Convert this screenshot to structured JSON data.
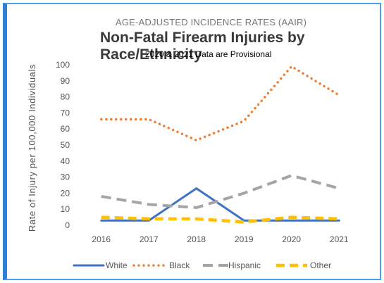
{
  "header": {
    "pre_title": "AGE-ADJUSTED INCIDENCE RATES (AAIR)",
    "title": "Non-Fatal Firearm Injuries by Race/Ethnicity",
    "subtitle": "2020 & 2021 Data are Provisional"
  },
  "chart_data": {
    "type": "line",
    "title": "Non-Fatal Firearm Injuries by Race/Ethnicity",
    "subtitle": "2020 & 2021 Data are Provisional",
    "xlabel": "",
    "ylabel": "Rate of Injury per 100,000 Individuals",
    "categories": [
      "2016",
      "2017",
      "2018",
      "2019",
      "2020",
      "2021"
    ],
    "ylim": [
      0,
      100
    ],
    "yticks": [
      0,
      10,
      20,
      30,
      40,
      50,
      60,
      70,
      80,
      90,
      100
    ],
    "grid": false,
    "legend_position": "bottom",
    "series": [
      {
        "name": "White",
        "values": [
          3,
          3,
          23,
          3,
          3,
          3
        ],
        "color": "#3f72c4",
        "style": "solid"
      },
      {
        "name": "Black",
        "values": [
          66,
          66,
          53,
          65,
          99,
          81
        ],
        "color": "#ed7d31",
        "style": "dotted"
      },
      {
        "name": "Hispanic",
        "values": [
          18,
          13,
          11,
          20,
          31,
          23
        ],
        "color": "#a5a5a5",
        "style": "dashed"
      },
      {
        "name": "Other",
        "values": [
          5,
          4,
          4,
          2,
          5,
          4
        ],
        "color": "#ffc000",
        "style": "dashed"
      }
    ]
  }
}
